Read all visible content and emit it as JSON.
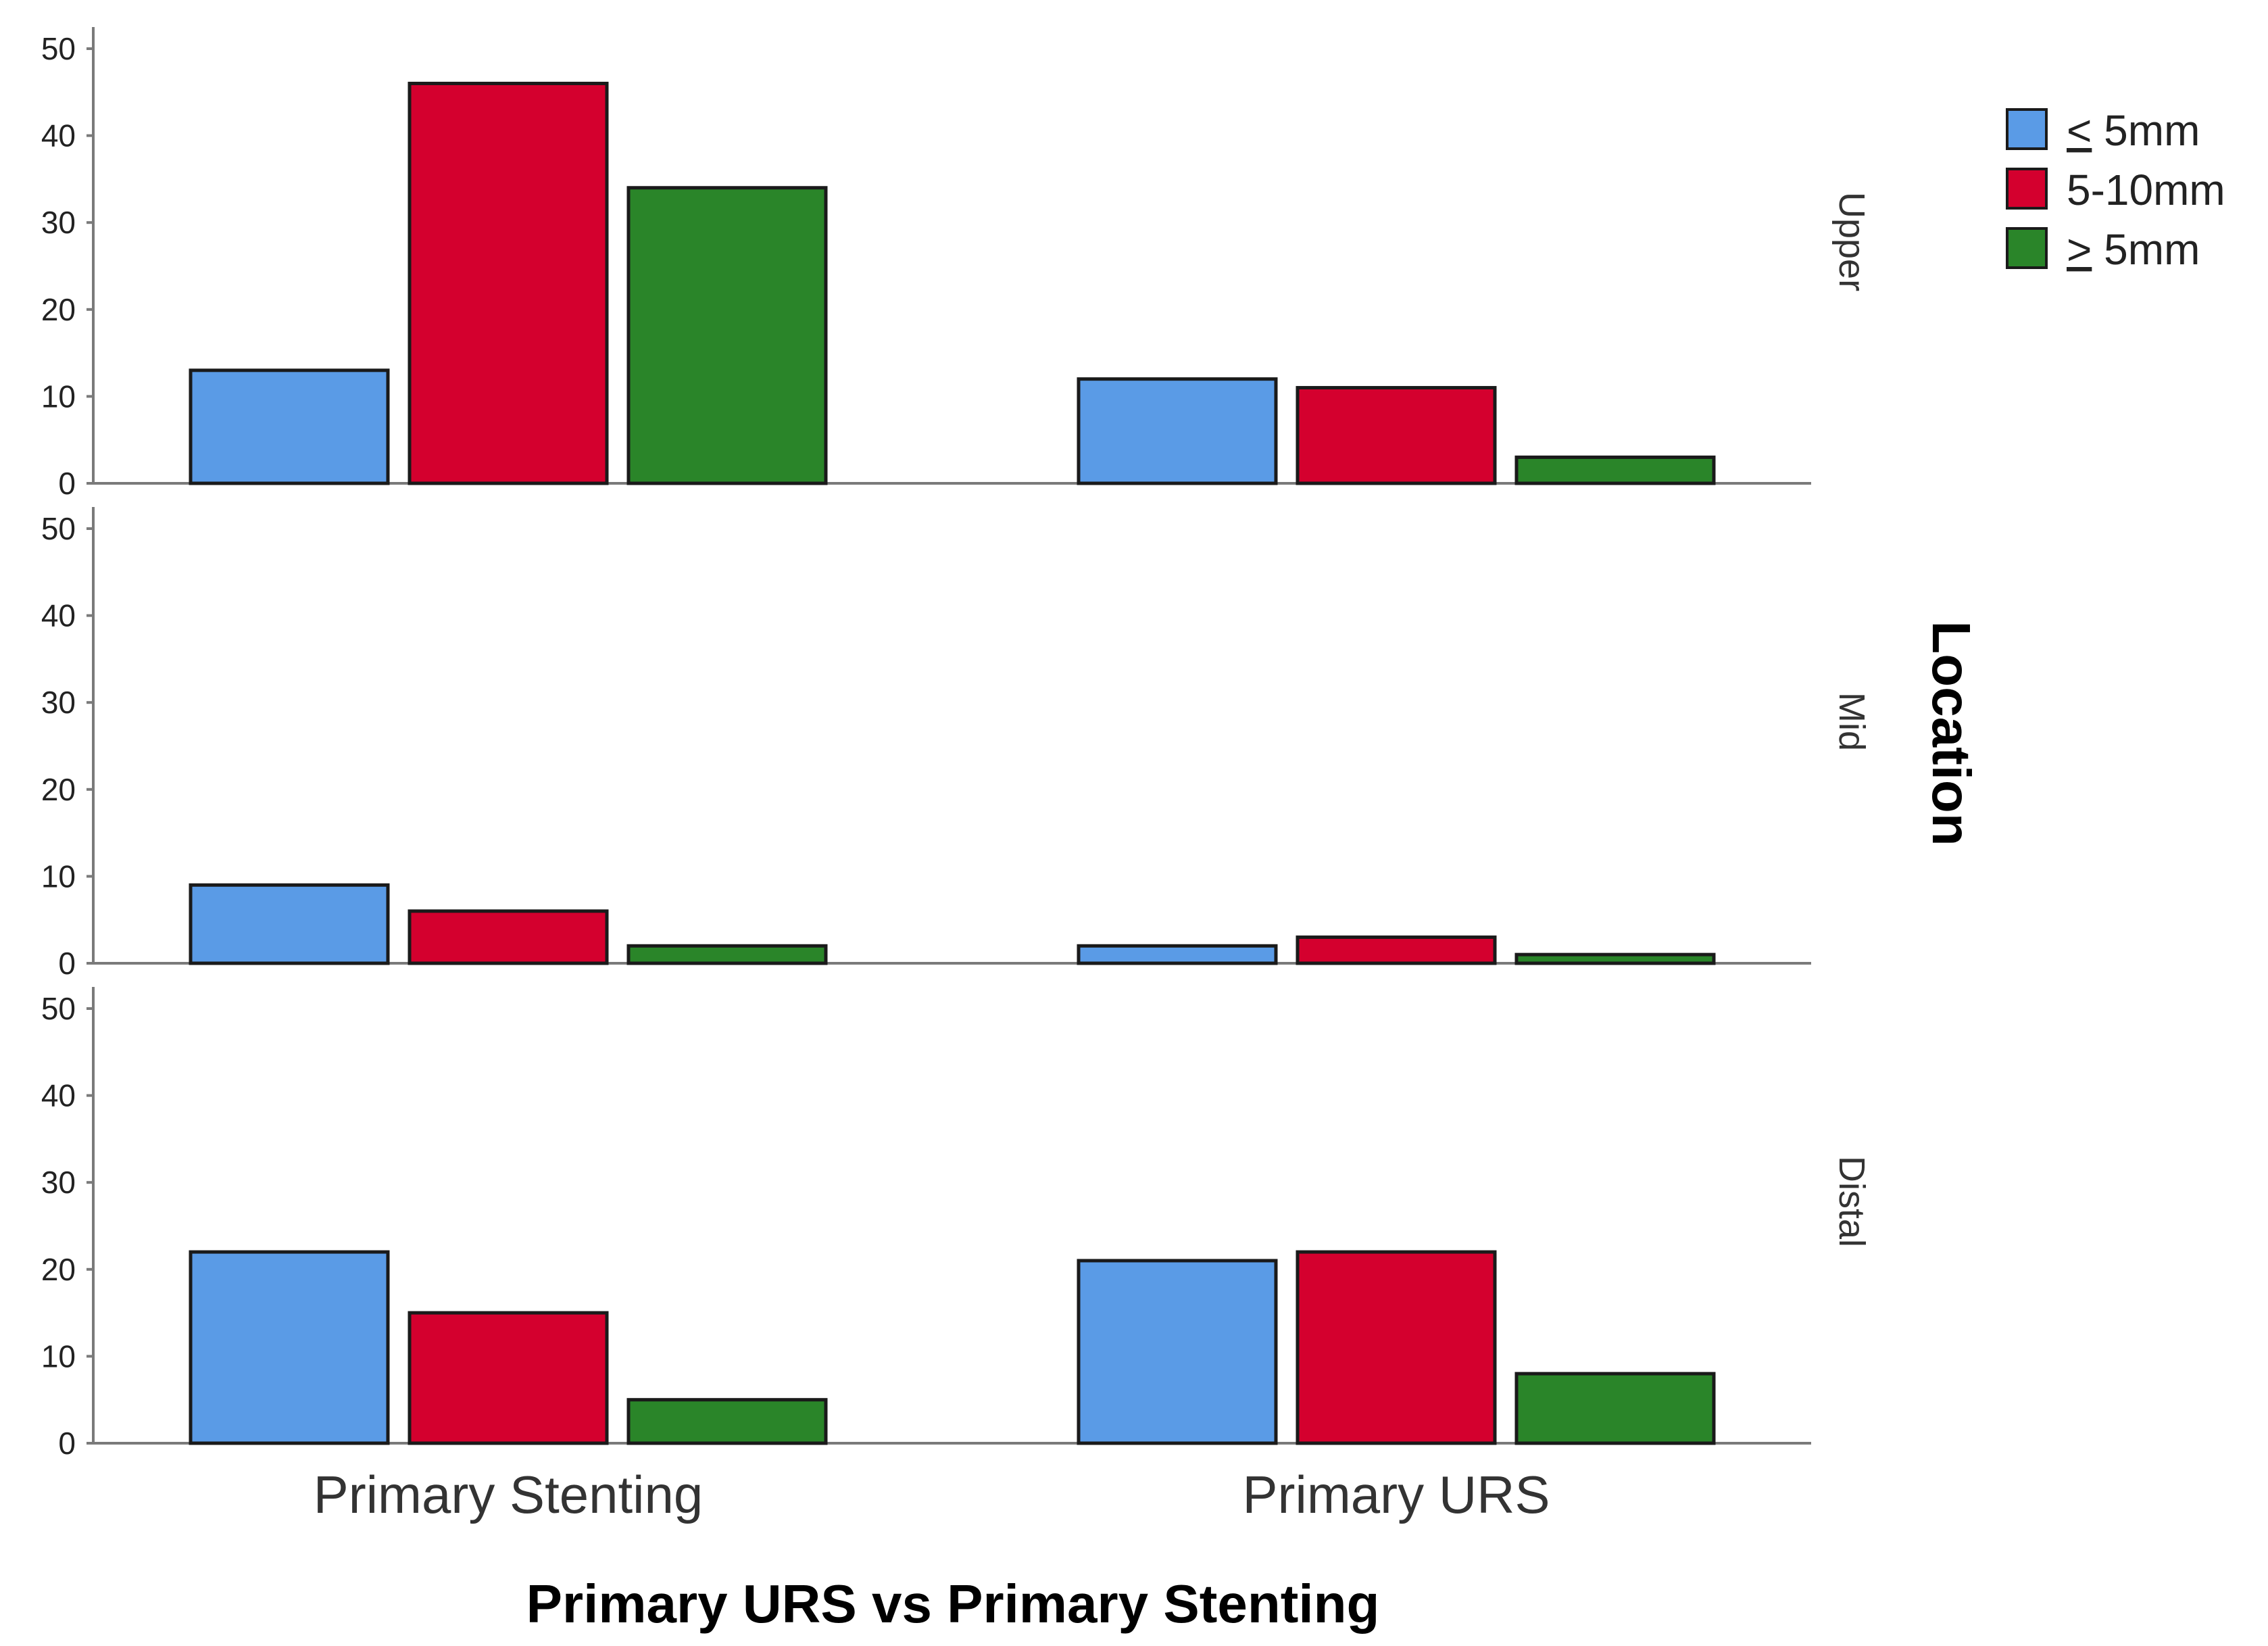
{
  "chart_data": {
    "type": "bar",
    "xlabel": "Primary URS vs Primary Stenting",
    "panel_axis_label": "Location",
    "categories": [
      "Primary Stenting",
      "Primary URS"
    ],
    "ylim": [
      0,
      50
    ],
    "yticks": [
      "0",
      "10",
      "20",
      "30",
      "40",
      "50"
    ],
    "legend": {
      "placement": "top-right",
      "entries": [
        {
          "prefix": "<",
          "text": " 5mm",
          "underline_prefix": true,
          "color": "#5a9be6"
        },
        {
          "prefix": "",
          "text": "5-10mm",
          "underline_prefix": false,
          "color": "#d4002e"
        },
        {
          "prefix": ">",
          "text": " 5mm",
          "underline_prefix": true,
          "color": "#2a8529"
        }
      ]
    },
    "panels": [
      {
        "label": "Upper",
        "series": [
          {
            "color": "#5a9be6",
            "values": [
              13,
              12
            ]
          },
          {
            "color": "#d4002e",
            "values": [
              46,
              11
            ]
          },
          {
            "color": "#2a8529",
            "values": [
              34,
              3
            ]
          }
        ]
      },
      {
        "label": "Mid",
        "series": [
          {
            "color": "#5a9be6",
            "values": [
              9,
              2
            ]
          },
          {
            "color": "#d4002e",
            "values": [
              6,
              3
            ]
          },
          {
            "color": "#2a8529",
            "values": [
              2,
              1
            ]
          }
        ]
      },
      {
        "label": "Distal",
        "series": [
          {
            "color": "#5a9be6",
            "values": [
              22,
              21
            ]
          },
          {
            "color": "#d4002e",
            "values": [
              15,
              22
            ]
          },
          {
            "color": "#2a8529",
            "values": [
              5,
              8
            ]
          }
        ]
      }
    ]
  }
}
